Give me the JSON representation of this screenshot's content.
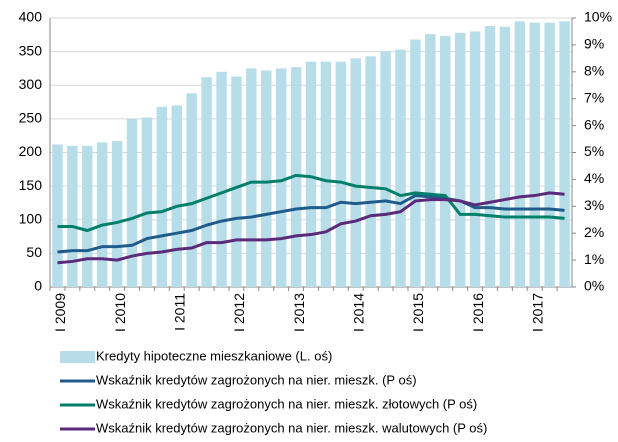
{
  "chart_data": {
    "type": "combo",
    "categories": [
      "I 2009",
      null,
      null,
      null,
      "I 2010",
      null,
      null,
      null,
      "I 2011",
      null,
      null,
      null,
      "I 2012",
      null,
      null,
      null,
      "I 2013",
      null,
      null,
      null,
      "I 2014",
      null,
      null,
      null,
      "I 2015",
      null,
      null,
      null,
      "I 2016",
      null,
      null,
      null,
      "I 2017",
      null,
      null
    ],
    "series": [
      {
        "name": "Kredyty hipoteczne mieszkaniowe (L. oś)",
        "type": "bar",
        "color": "#b7dde8",
        "values": [
          212,
          210,
          210,
          215,
          217,
          250,
          252,
          268,
          270,
          288,
          312,
          320,
          313,
          325,
          322,
          325,
          327,
          335,
          335,
          335,
          340,
          343,
          350,
          353,
          368,
          376,
          373,
          378,
          380,
          388,
          387,
          395,
          393,
          393,
          395
        ]
      },
      {
        "name": "Wskaźnik kredytów zagrożonych na nier. mieszk. (P oś)",
        "type": "line",
        "axis": "y2",
        "color": "#1f5c8b",
        "values": [
          1.3,
          1.35,
          1.35,
          1.5,
          1.5,
          1.55,
          1.8,
          1.9,
          2.0,
          2.1,
          2.3,
          2.45,
          2.55,
          2.6,
          2.7,
          2.8,
          2.9,
          2.95,
          2.95,
          3.15,
          3.1,
          3.15,
          3.2,
          3.1,
          3.4,
          3.35,
          3.3,
          3.2,
          2.95,
          2.95,
          2.9,
          2.9,
          2.9,
          2.9,
          2.85
        ]
      },
      {
        "name": "Wskaźnik kredytów zagrożonych na nier. mieszk. złotowych (P oś)",
        "type": "line",
        "axis": "y2",
        "color": "#00806a",
        "values": [
          2.25,
          2.25,
          2.1,
          2.3,
          2.4,
          2.55,
          2.75,
          2.8,
          3.0,
          3.1,
          3.3,
          3.5,
          3.7,
          3.9,
          3.9,
          3.95,
          4.15,
          4.1,
          3.95,
          3.9,
          3.75,
          3.7,
          3.65,
          3.4,
          3.5,
          3.45,
          3.4,
          2.7,
          2.7,
          2.65,
          2.6,
          2.6,
          2.6,
          2.6,
          2.55
        ]
      },
      {
        "name": "Wskaźnik kredytów zagrożonych na nier. mieszk. walutowych (P oś)",
        "type": "line",
        "axis": "y2",
        "color": "#5b2a7a",
        "values": [
          0.9,
          0.95,
          1.05,
          1.05,
          1.0,
          1.15,
          1.25,
          1.3,
          1.4,
          1.45,
          1.65,
          1.65,
          1.75,
          1.75,
          1.75,
          1.8,
          1.9,
          1.95,
          2.05,
          2.35,
          2.45,
          2.65,
          2.7,
          2.8,
          3.2,
          3.25,
          3.25,
          3.2,
          3.05,
          3.15,
          3.25,
          3.35,
          3.4,
          3.5,
          3.45
        ]
      }
    ],
    "ylim": [
      0,
      400
    ],
    "yticks": [
      0,
      50,
      100,
      150,
      200,
      250,
      300,
      350,
      400
    ],
    "y2lim": [
      0,
      10
    ],
    "y2ticks": [
      {
        "value": 0,
        "label": "0%"
      },
      {
        "value": 1,
        "label": "1%"
      },
      {
        "value": 2,
        "label": "2%"
      },
      {
        "value": 3,
        "label": "3%"
      },
      {
        "value": 4,
        "label": "4%"
      },
      {
        "value": 5,
        "label": "5%"
      },
      {
        "value": 6,
        "label": "6%"
      },
      {
        "value": 7,
        "label": "7%"
      },
      {
        "value": 8,
        "label": "8%"
      },
      {
        "value": 9,
        "label": "9%"
      },
      {
        "value": 10,
        "label": "10%"
      }
    ],
    "grid": true
  }
}
